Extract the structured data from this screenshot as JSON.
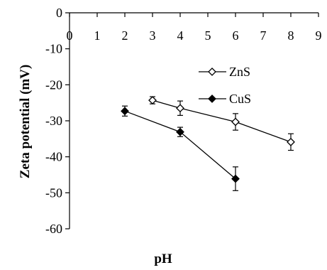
{
  "chart_data": {
    "type": "scatter",
    "title": "",
    "xlabel": "pH",
    "ylabel": "Zeta potential (mV)",
    "xlim": [
      0,
      9
    ],
    "ylim": [
      -60,
      0
    ],
    "x_ticks": [
      "0",
      "1",
      "2",
      "3",
      "4",
      "5",
      "6",
      "7",
      "8",
      "9"
    ],
    "y_ticks": [
      "0",
      "-10",
      "-20",
      "-30",
      "-40",
      "-50",
      "-60"
    ],
    "x_axis_position": "top",
    "grid": false,
    "legend_position": "right",
    "series": [
      {
        "name": "ZnS",
        "marker": "open-diamond",
        "color": "#000000",
        "points": [
          {
            "x": 3,
            "y": -24.3,
            "err": 1.0
          },
          {
            "x": 4,
            "y": -26.5,
            "err": 2.0
          },
          {
            "x": 6,
            "y": -30.3,
            "err": 2.3
          },
          {
            "x": 8,
            "y": -35.9,
            "err": 2.3
          }
        ]
      },
      {
        "name": "CuS",
        "marker": "filled-diamond",
        "color": "#000000",
        "points": [
          {
            "x": 2,
            "y": -27.3,
            "err": 1.4
          },
          {
            "x": 4,
            "y": -33.1,
            "err": 1.3
          },
          {
            "x": 6,
            "y": -46.1,
            "err": 3.3
          }
        ]
      }
    ]
  }
}
